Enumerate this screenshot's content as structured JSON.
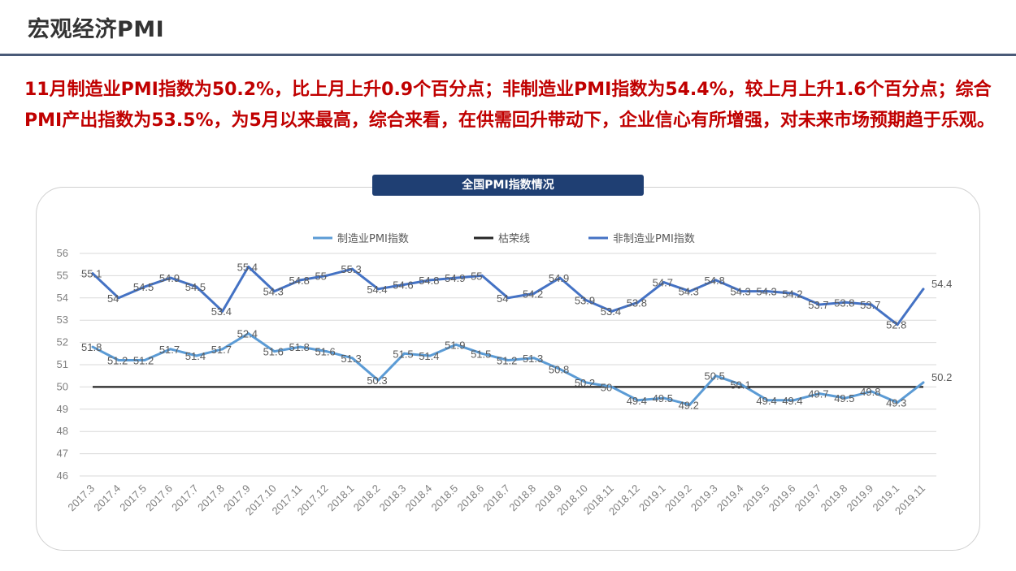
{
  "page": {
    "title": "宏观经济PMI",
    "summary": "11月制造业PMI指数为50.2%，比上月上升0.9个百分点；非制造业PMI指数为54.4%，较上月上升1.6个百分点；综合PMI产出指数为53.5%，为5月以来最高，综合来看，在供需回升带动下，企业信心有所增强，对未来市场预期趋于乐观。"
  },
  "chart_data": {
    "type": "line",
    "title": "全国PMI指数情况",
    "categories": [
      "2017.3",
      "2017.4",
      "2017.5",
      "2017.6",
      "2017.7",
      "2017.8",
      "2017.9",
      "2017.10",
      "2017.11",
      "2017.12",
      "2018.1",
      "2018.2",
      "2018.3",
      "2018.4",
      "2018.5",
      "2018.6",
      "2018.7",
      "2018.8",
      "2018.9",
      "2018.10",
      "2018.11",
      "2018.12",
      "2019.1",
      "2019.2",
      "2019.3",
      "2019.4",
      "2019.5",
      "2019.6",
      "2019.7",
      "2019.8",
      "2019.9",
      "2019.1",
      "2019.11"
    ],
    "series": [
      {
        "name": "制造业PMI指数",
        "color": "#5b9bd5",
        "values": [
          51.8,
          51.2,
          51.2,
          51.7,
          51.4,
          51.7,
          52.4,
          51.6,
          51.8,
          51.6,
          51.3,
          50.3,
          51.5,
          51.4,
          51.9,
          51.5,
          51.2,
          51.3,
          50.8,
          50.2,
          50,
          49.4,
          49.5,
          49.2,
          50.5,
          50.1,
          49.4,
          49.4,
          49.7,
          49.5,
          49.8,
          49.3,
          50.2
        ],
        "labels": [
          "51.8",
          "51.2",
          "51.2",
          "51.7",
          "51.4",
          "51.7",
          "52.4",
          "51.6",
          "51.8",
          "51.6",
          "51.3",
          "50.3",
          "51.5",
          "51.4",
          "51.9",
          "51.5",
          "51.2",
          "51.3",
          "50.8",
          "50.2",
          "50",
          "49.4",
          "49.5",
          "49.2",
          "50.5",
          "50.1",
          "49.4",
          "49.4",
          "49.7",
          "49.5",
          "49.8",
          "49.3",
          "50.2"
        ]
      },
      {
        "name": "枯荣线",
        "color": "#262626",
        "values": [
          50,
          50,
          50,
          50,
          50,
          50,
          50,
          50,
          50,
          50,
          50,
          50,
          50,
          50,
          50,
          50,
          50,
          50,
          50,
          50,
          50,
          50,
          50,
          50,
          50,
          50,
          50,
          50,
          50,
          50,
          50,
          50,
          50
        ]
      },
      {
        "name": "非制造业PMI指数",
        "color": "#4472c4",
        "values": [
          55.1,
          54,
          54.5,
          54.9,
          54.5,
          53.4,
          55.4,
          54.3,
          54.8,
          55,
          55.3,
          54.4,
          54.6,
          54.8,
          54.9,
          55,
          54,
          54.2,
          54.9,
          53.9,
          53.4,
          53.8,
          54.7,
          54.3,
          54.8,
          54.3,
          54.3,
          54.2,
          53.7,
          53.8,
          53.7,
          52.8,
          54.4
        ],
        "labels": [
          "55.1",
          "54",
          "54.5",
          "54.9",
          "54.5",
          "53.4",
          "55.4",
          "54.3",
          "54.8",
          "55",
          "55.3",
          "54.4",
          "54.6",
          "54.8",
          "54.9",
          "55",
          "54",
          "54.2",
          "54.9",
          "53.9",
          "53.4",
          "53.8",
          "54.7",
          "54.3",
          "54.8",
          "54.3",
          "54.3",
          "54.2",
          "53.7",
          "53.8",
          "53.7",
          "52.8",
          "54.4"
        ]
      }
    ],
    "ylim": [
      46,
      56
    ],
    "yticks": [
      "46",
      "47",
      "48",
      "49",
      "50",
      "51",
      "52",
      "53",
      "54",
      "55",
      "56"
    ],
    "grid": true,
    "legend": "top"
  }
}
